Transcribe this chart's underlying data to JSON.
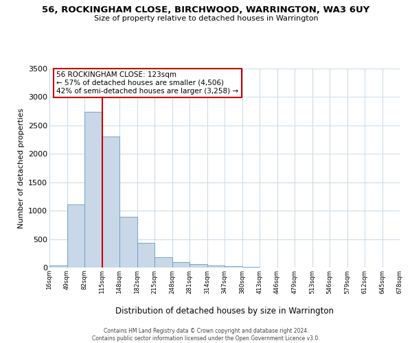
{
  "title": "56, ROCKINGHAM CLOSE, BIRCHWOOD, WARRINGTON, WA3 6UY",
  "subtitle": "Size of property relative to detached houses in Warrington",
  "xlabel": "Distribution of detached houses by size in Warrington",
  "ylabel": "Number of detached properties",
  "bar_values": [
    40,
    1110,
    2740,
    2300,
    890,
    430,
    185,
    100,
    55,
    40,
    25,
    15,
    5,
    2,
    1,
    1,
    1,
    1,
    1,
    1
  ],
  "categories": [
    "16sqm",
    "49sqm",
    "82sqm",
    "115sqm",
    "148sqm",
    "182sqm",
    "215sqm",
    "248sqm",
    "281sqm",
    "314sqm",
    "347sqm",
    "380sqm",
    "413sqm",
    "446sqm",
    "479sqm",
    "513sqm",
    "546sqm",
    "579sqm",
    "612sqm",
    "645sqm",
    "678sqm"
  ],
  "bar_color": "#c8d8e8",
  "bar_edge_color": "#6699bb",
  "vline_x": 3,
  "vline_color": "#cc0000",
  "annotation_title": "56 ROCKINGHAM CLOSE: 123sqm",
  "annotation_line1": "← 57% of detached houses are smaller (4,506)",
  "annotation_line2": "42% of semi-detached houses are larger (3,258) →",
  "annotation_box_edge": "#cc0000",
  "ylim": [
    0,
    3500
  ],
  "yticks": [
    0,
    500,
    1000,
    1500,
    2000,
    2500,
    3000,
    3500
  ],
  "footer_line1": "Contains HM Land Registry data © Crown copyright and database right 2024.",
  "footer_line2": "Contains public sector information licensed under the Open Government Licence v3.0.",
  "bg_color": "#ffffff",
  "grid_color": "#c8d8e8"
}
